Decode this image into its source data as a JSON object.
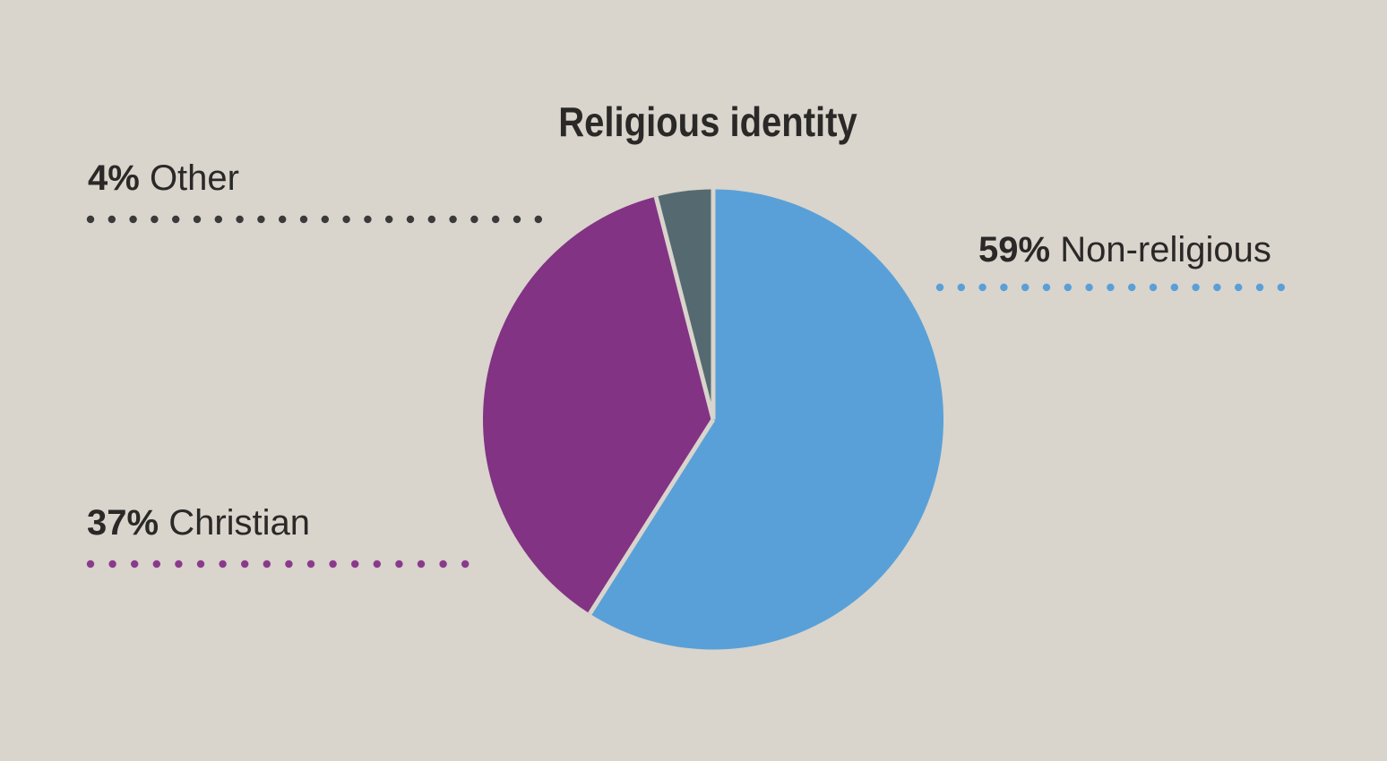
{
  "page": {
    "background": "#d9d4cc",
    "text_color": "#2a2927"
  },
  "chart_data": {
    "type": "pie",
    "title": "Religious identity",
    "start_angle": "12 o'clock",
    "direction": "clockwise",
    "separator_color": "#d9d4cc",
    "legend_position": "callouts around pie",
    "slices": [
      {
        "label": "Non-religious",
        "value": 59,
        "pct_label": "59%",
        "color": "#59a0d8",
        "dot_color": "#59a0d8"
      },
      {
        "label": "Christian",
        "value": 37,
        "pct_label": "37%",
        "color": "#823383",
        "dot_color": "#8a3a8c"
      },
      {
        "label": "Other",
        "value": 4,
        "pct_label": "4%",
        "color": "#546a70",
        "dot_color": "#3a3a3a"
      }
    ]
  }
}
